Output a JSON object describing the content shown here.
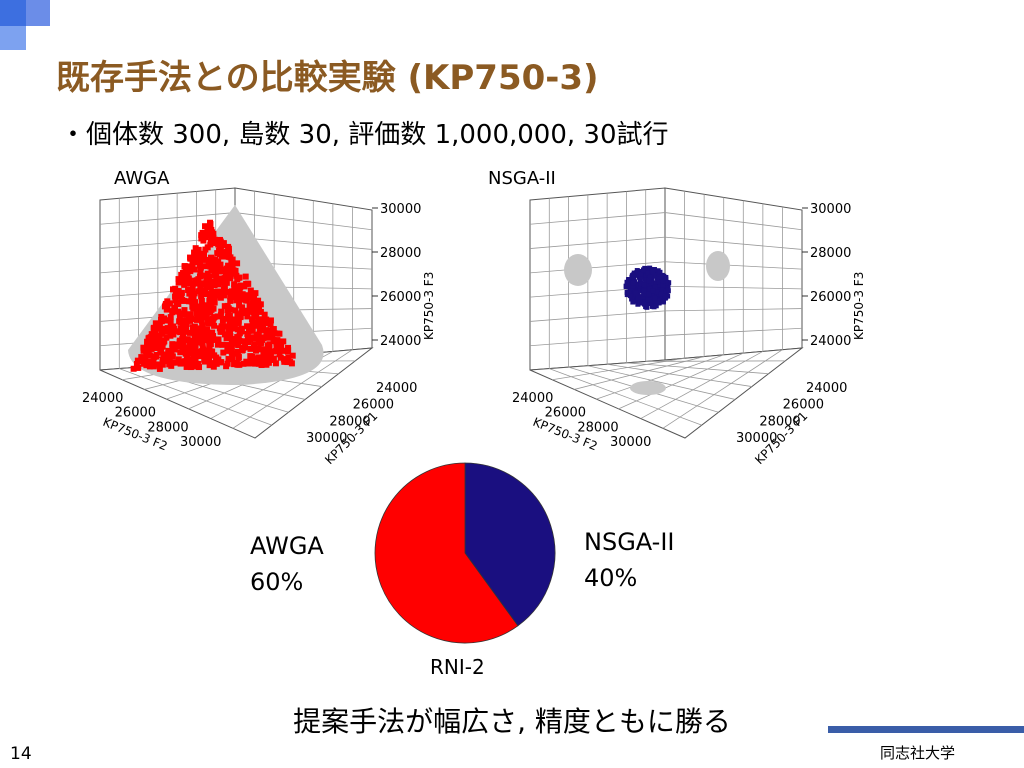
{
  "slide": {
    "title": "既存手法との比較実験 (KP750-3)",
    "bullet": "・個体数 300, 島数 30, 評価数 1,000,000, 30試行",
    "conclusion": "提案手法が幅広さ, 精度ともに勝る",
    "slide_number": "14",
    "affiliation": "同志社大学"
  },
  "colors": {
    "title": "#8b5a22",
    "awga": "#ff0000",
    "nsga": "#1a0f80",
    "projection": "#c8c8c8",
    "accent_bar": "#3a5da8"
  },
  "chart_data": [
    {
      "type": "scatter",
      "title": "AWGA",
      "dimensions": 3,
      "xlabel": "KP750-3 F1",
      "ylabel": "KP750-3 F2",
      "zlabel": "KP750-3 F3",
      "xticks": [
        "24000",
        "26000",
        "28000",
        "30000"
      ],
      "yticks": [
        "24000",
        "26000",
        "28000",
        "30000"
      ],
      "zticks": [
        "24000",
        "26000",
        "28000",
        "30000"
      ],
      "grid": true,
      "series": [
        {
          "name": "AWGA",
          "color": "#ff0000",
          "shape": "triangular front",
          "approx_range_z": [
            23500,
            30000
          ]
        }
      ]
    },
    {
      "type": "scatter",
      "title": "NSGA-II",
      "dimensions": 3,
      "xlabel": "KP750-3 F1",
      "ylabel": "KP750-3 F2",
      "zlabel": "KP750-3 F3",
      "xticks": [
        "24000",
        "26000",
        "28000",
        "30000"
      ],
      "yticks": [
        "24000",
        "26000",
        "28000",
        "30000"
      ],
      "zticks": [
        "24000",
        "26000",
        "28000",
        "30000"
      ],
      "grid": true,
      "series": [
        {
          "name": "NSGA-II",
          "color": "#1a0f80",
          "shape": "compact cluster",
          "approx_center_z": 26700
        }
      ]
    },
    {
      "type": "pie",
      "title": "RNI-2",
      "slices": [
        {
          "label": "AWGA",
          "value": 60,
          "value_label": "60%",
          "color": "#ff0000"
        },
        {
          "label": "NSGA-II",
          "value": 40,
          "value_label": "40%",
          "color": "#1a0f80"
        }
      ]
    }
  ]
}
